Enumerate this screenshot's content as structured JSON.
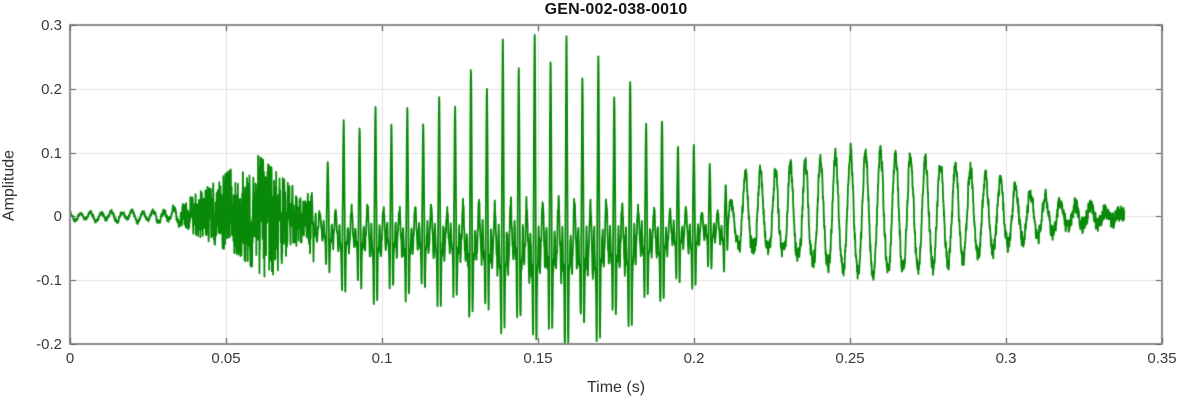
{
  "chart_data": {
    "type": "line",
    "title": "GEN-002-038-0010",
    "xlabel": "Time (s)",
    "ylabel": "Amplitude",
    "xlim": [
      0,
      0.35
    ],
    "ylim": [
      -0.2,
      0.3
    ],
    "xticks": [
      0,
      0.05,
      0.1,
      0.15,
      0.2,
      0.25,
      0.3,
      0.35
    ],
    "xtick_labels": [
      "0",
      "0.05",
      "0.1",
      "0.15",
      "0.2",
      "0.25",
      "0.3",
      "0.35"
    ],
    "yticks": [
      -0.2,
      -0.1,
      0,
      0.1,
      0.2,
      0.3
    ],
    "ytick_labels": [
      "-0.2",
      "-0.1",
      "0",
      "0.1",
      "0.2",
      "0.3"
    ],
    "grid": true,
    "legend": null,
    "colors": {
      "line": "#088a08",
      "axis_border": "#8c8c8c",
      "tick_mark": "#5a5a5a",
      "grid": "#e3e3e3",
      "background": "#ffffff"
    },
    "signal": {
      "description": "speech-like waveform: quiet hum, fricative noise burst, spiky voiced section peaking 0.278 near t=0.154s, smooth tone, decaying tail",
      "end_s": 0.338,
      "seed": 20240,
      "voiced_f0_hz": 196,
      "tonal_f0_hz": 208,
      "hum_f0_hz": 300,
      "harmonics": [
        0.55,
        0.95,
        0.72,
        1.0,
        0.62,
        0.48,
        0.34,
        0.22
      ],
      "segments": {
        "hum_end": 0.036,
        "noise_start": 0.036,
        "noise_end": 0.0775,
        "voiced_start": 0.0775,
        "voiced_end": 0.212,
        "tonal_start": 0.212,
        "ramp_s": 0.006
      },
      "envelope": [
        [
          0.0,
          0.008,
          -0.008
        ],
        [
          0.012,
          0.01,
          -0.01
        ],
        [
          0.024,
          0.012,
          -0.011
        ],
        [
          0.032,
          0.016,
          -0.014
        ],
        [
          0.04,
          0.034,
          -0.028
        ],
        [
          0.048,
          0.058,
          -0.048
        ],
        [
          0.054,
          0.085,
          -0.06
        ],
        [
          0.058,
          0.105,
          -0.078
        ],
        [
          0.062,
          0.088,
          -0.095
        ],
        [
          0.066,
          0.07,
          -0.09
        ],
        [
          0.07,
          0.052,
          -0.055
        ],
        [
          0.075,
          0.035,
          -0.038
        ],
        [
          0.08,
          0.08,
          -0.085
        ],
        [
          0.086,
          0.13,
          -0.105
        ],
        [
          0.092,
          0.16,
          -0.115
        ],
        [
          0.1,
          0.17,
          -0.125
        ],
        [
          0.108,
          0.155,
          -0.12
        ],
        [
          0.116,
          0.165,
          -0.125
        ],
        [
          0.124,
          0.2,
          -0.14
        ],
        [
          0.132,
          0.235,
          -0.155
        ],
        [
          0.14,
          0.26,
          -0.17
        ],
        [
          0.148,
          0.272,
          -0.18
        ],
        [
          0.154,
          0.278,
          -0.19
        ],
        [
          0.162,
          0.262,
          -0.192
        ],
        [
          0.17,
          0.24,
          -0.18
        ],
        [
          0.178,
          0.205,
          -0.16
        ],
        [
          0.186,
          0.165,
          -0.135
        ],
        [
          0.194,
          0.13,
          -0.115
        ],
        [
          0.202,
          0.1,
          -0.095
        ],
        [
          0.21,
          0.08,
          -0.08
        ],
        [
          0.218,
          0.068,
          -0.068
        ],
        [
          0.226,
          0.072,
          -0.072
        ],
        [
          0.234,
          0.082,
          -0.082
        ],
        [
          0.242,
          0.092,
          -0.092
        ],
        [
          0.25,
          0.103,
          -0.1
        ],
        [
          0.258,
          0.1,
          -0.097
        ],
        [
          0.266,
          0.095,
          -0.092
        ],
        [
          0.274,
          0.09,
          -0.088
        ],
        [
          0.282,
          0.082,
          -0.08
        ],
        [
          0.29,
          0.07,
          -0.068
        ],
        [
          0.298,
          0.055,
          -0.054
        ],
        [
          0.306,
          0.04,
          -0.04
        ],
        [
          0.314,
          0.028,
          -0.028
        ],
        [
          0.322,
          0.018,
          -0.018
        ],
        [
          0.33,
          0.011,
          -0.011
        ],
        [
          0.338,
          0.004,
          -0.004
        ]
      ]
    }
  }
}
